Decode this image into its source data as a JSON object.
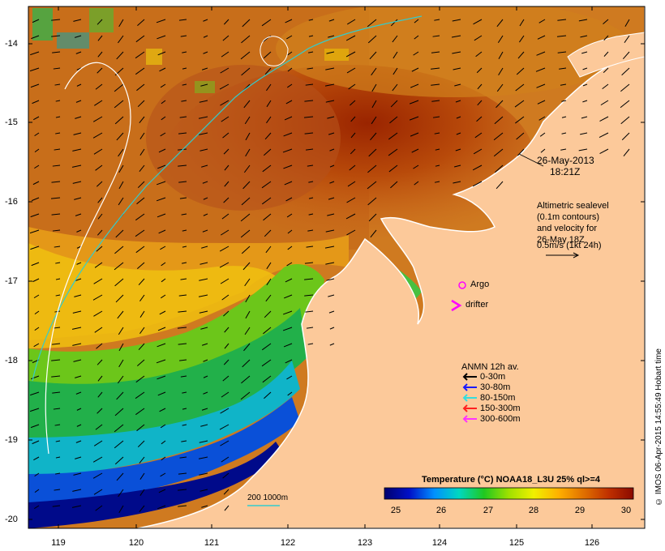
{
  "map": {
    "date_line1": "26-May-2013",
    "date_line2": "18:21Z",
    "altimetry": {
      "line1": "Altimetric sealevel",
      "line2": "(0.1m contours)",
      "line3": "and velocity for",
      "line4": "26-May 18Z",
      "line5": "0.5m/s (1kt 24h)"
    },
    "argo_label": "Argo",
    "drifter_label": "drifter",
    "anmn": {
      "title": "ANMN 12h av.",
      "items": [
        {
          "label": "0-30m",
          "color": "#000000"
        },
        {
          "label": "30-80m",
          "color": "#1a1aff"
        },
        {
          "label": "80-150m",
          "color": "#33dddd"
        },
        {
          "label": "150-300m",
          "color": "#ff2020"
        },
        {
          "label": "300-600m",
          "color": "#ff33ff"
        }
      ]
    },
    "depth_label": "200  1000m",
    "colorbar": {
      "title": "Temperature (°C) NOAA18_L3U 25% ql>=4",
      "ticks": [
        "25",
        "26",
        "27",
        "28",
        "29",
        "30"
      ],
      "colors": [
        "#00006e",
        "#0010c8",
        "#0090ff",
        "#00d8c0",
        "#20c820",
        "#a0e000",
        "#f0f000",
        "#ffb000",
        "#e07000",
        "#c03000",
        "#8a0a00"
      ]
    },
    "y_ticks": [
      "-14",
      "-15",
      "-16",
      "-17",
      "-18",
      "-19",
      "-20"
    ],
    "x_ticks": [
      "119",
      "120",
      "121",
      "122",
      "123",
      "124",
      "125",
      "126"
    ],
    "credit": "© IMOS 06-Apr-2015 14:55:49 Hobart time",
    "colors": {
      "land": "#fcc99a",
      "argo": "#ff00ff",
      "drifter": "#ff00ff"
    }
  }
}
